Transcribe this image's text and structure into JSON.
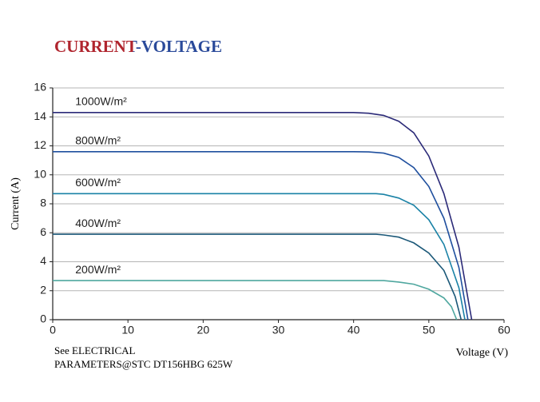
{
  "chart_data": {
    "type": "line",
    "title": "CURRENT-VOLTAGE",
    "xlabel": "Voltage (V)",
    "ylabel": "Current (A)",
    "note": [
      "See ELECTRICAL",
      "PARAMETERS@STC DT156HBG 625W"
    ],
    "xlim": [
      0,
      60
    ],
    "xticks": [
      0,
      10,
      20,
      30,
      40,
      50,
      60
    ],
    "ylim": [
      0,
      16
    ],
    "yticks": [
      0,
      2,
      4,
      6,
      8,
      10,
      12,
      14,
      16
    ],
    "grid": true,
    "series": [
      {
        "name": "1000W/m²",
        "color": "#2b2a78",
        "x": [
          0,
          10,
          20,
          30,
          40,
          42,
          44,
          46,
          48,
          50,
          52,
          54,
          55.7
        ],
        "values": [
          14.3,
          14.3,
          14.3,
          14.3,
          14.3,
          14.25,
          14.1,
          13.7,
          12.9,
          11.3,
          8.7,
          5.0,
          0
        ]
      },
      {
        "name": "800W/m²",
        "color": "#1f4f9e",
        "x": [
          0,
          10,
          20,
          30,
          40,
          42,
          44,
          46,
          48,
          50,
          52,
          54,
          55.2
        ],
        "values": [
          11.6,
          11.6,
          11.6,
          11.6,
          11.6,
          11.58,
          11.5,
          11.2,
          10.5,
          9.2,
          7.0,
          3.6,
          0
        ]
      },
      {
        "name": "600W/m²",
        "color": "#1a82a6",
        "x": [
          0,
          10,
          20,
          30,
          40,
          43,
          44,
          46,
          48,
          50,
          52,
          54,
          54.8
        ],
        "values": [
          8.7,
          8.7,
          8.7,
          8.7,
          8.7,
          8.7,
          8.65,
          8.4,
          7.9,
          6.9,
          5.2,
          2.2,
          0
        ]
      },
      {
        "name": "400W/m²",
        "color": "#1b5878",
        "x": [
          0,
          10,
          20,
          30,
          40,
          43,
          44,
          46,
          48,
          50,
          52,
          53.5,
          54.3
        ],
        "values": [
          5.9,
          5.9,
          5.9,
          5.9,
          5.9,
          5.9,
          5.85,
          5.7,
          5.3,
          4.6,
          3.4,
          1.6,
          0
        ]
      },
      {
        "name": "200W/m²",
        "color": "#4fa79f",
        "x": [
          0,
          10,
          20,
          30,
          40,
          43,
          44,
          46,
          48,
          50,
          52,
          53,
          53.7
        ],
        "values": [
          2.7,
          2.7,
          2.7,
          2.7,
          2.7,
          2.7,
          2.7,
          2.6,
          2.45,
          2.1,
          1.5,
          0.9,
          0
        ]
      }
    ]
  }
}
